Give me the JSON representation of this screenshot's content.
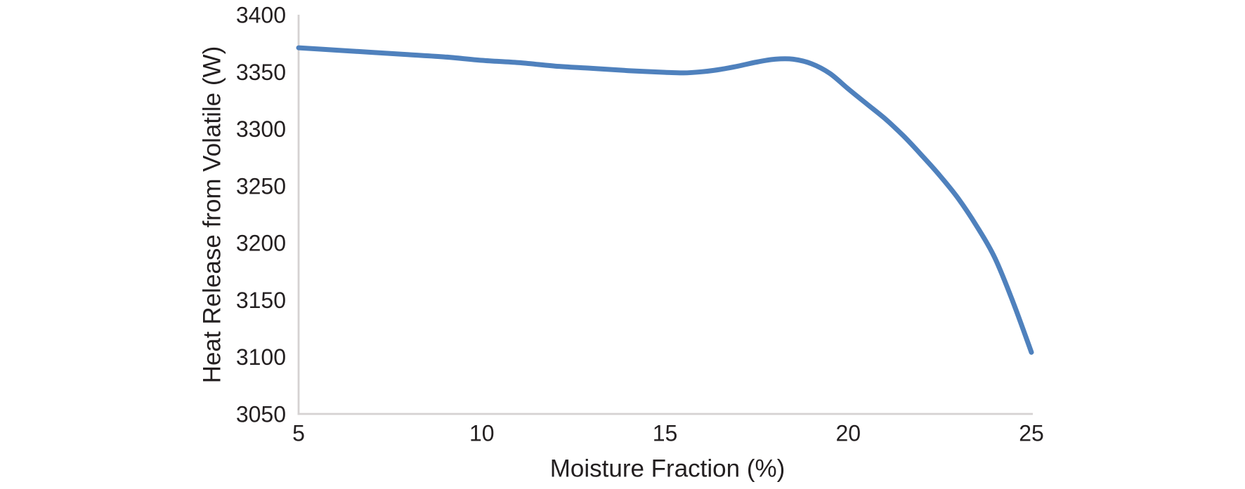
{
  "chart_data": {
    "type": "line",
    "title": "",
    "xlabel": "Moisture Fraction (%)",
    "ylabel": "Heat Release from Volatile (W)",
    "x": [
      5,
      10,
      15,
      20,
      25
    ],
    "series": [
      {
        "name": "Heat Release from Volatile",
        "values": [
          3370,
          3359,
          3349,
          3335,
          3103
        ]
      }
    ],
    "xlim": [
      5,
      25
    ],
    "ylim": [
      3050,
      3400
    ],
    "x_ticks": [
      5,
      10,
      15,
      20,
      25
    ],
    "y_ticks": [
      3050,
      3100,
      3150,
      3200,
      3250,
      3300,
      3350,
      3400
    ],
    "grid": false,
    "legend": "none",
    "smooth": true,
    "line_color": "#4f81bd",
    "line_width": 7,
    "axis_color": "#d5d2d2",
    "text_color": "#231f20",
    "curve_samples": {
      "x": [
        5,
        6,
        7,
        8,
        9,
        10,
        11,
        12,
        13,
        14,
        15,
        15.5,
        16,
        16.5,
        17,
        17.5,
        18,
        18.5,
        19,
        19.5,
        20,
        20.5,
        21,
        21.5,
        22,
        22.5,
        23,
        23.5,
        24,
        24.5,
        25
      ],
      "y": [
        3371,
        3369,
        3367,
        3365,
        3363,
        3360,
        3358,
        3355,
        3353,
        3351,
        3349.5,
        3349,
        3350,
        3352,
        3355,
        3358.5,
        3361,
        3361,
        3357,
        3348.5,
        3335,
        3322,
        3309,
        3294,
        3277,
        3259,
        3239,
        3215,
        3187,
        3148,
        3104
      ]
    }
  }
}
